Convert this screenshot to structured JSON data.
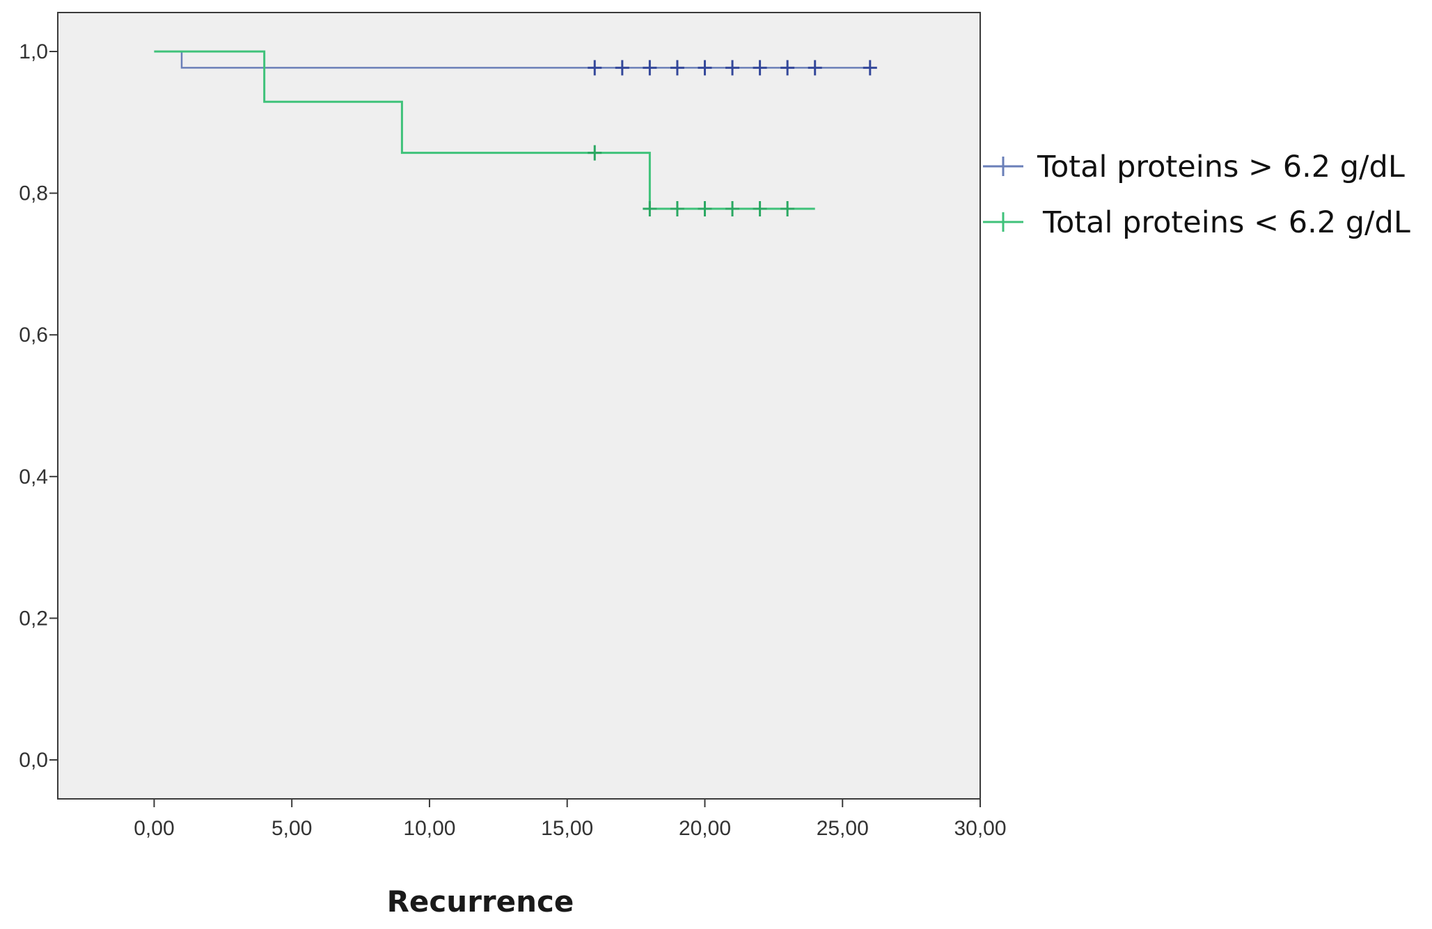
{
  "chart_data": {
    "type": "line",
    "subtype": "kaplan-meier-step",
    "title": "",
    "xlabel": "Recurrence",
    "ylabel": "",
    "xlim": [
      -3.5,
      30
    ],
    "ylim": [
      -0.055,
      1.055
    ],
    "x_ticks": [
      0,
      5,
      10,
      15,
      20,
      25,
      30
    ],
    "x_tick_labels": [
      "0,00",
      "5,00",
      "10,00",
      "15,00",
      "20,00",
      "25,00",
      "30,00"
    ],
    "y_ticks": [
      0,
      0.2,
      0.4,
      0.6,
      0.8,
      1.0
    ],
    "y_tick_labels": [
      "0,0",
      "0,2",
      "0,4",
      "0,6",
      "0,8",
      "1,0"
    ],
    "grid": false,
    "legend_position": "right",
    "series": [
      {
        "name": "Total proteins > 6.2 g/dL",
        "color": "#6a7fb8",
        "censor_color": "#34489a",
        "steps": [
          [
            0,
            1.0
          ],
          [
            1,
            0.977
          ],
          [
            26,
            0.977
          ]
        ],
        "censored": [
          [
            16,
            0.977
          ],
          [
            17,
            0.977
          ],
          [
            18,
            0.977
          ],
          [
            19,
            0.977
          ],
          [
            20,
            0.977
          ],
          [
            21,
            0.977
          ],
          [
            22,
            0.977
          ],
          [
            23,
            0.977
          ],
          [
            24,
            0.977
          ],
          [
            26,
            0.977
          ]
        ]
      },
      {
        "name": "Total proteins < 6.2 g/dL",
        "color": "#3fc27a",
        "censor_color": "#2aa862",
        "steps": [
          [
            0,
            1.0
          ],
          [
            4,
            0.929
          ],
          [
            9,
            0.857
          ],
          [
            18,
            0.778
          ],
          [
            24,
            0.778
          ]
        ],
        "censored": [
          [
            16,
            0.857
          ],
          [
            18,
            0.778
          ],
          [
            19,
            0.778
          ],
          [
            20,
            0.778
          ],
          [
            21,
            0.778
          ],
          [
            22,
            0.778
          ],
          [
            23,
            0.778
          ]
        ]
      }
    ]
  }
}
